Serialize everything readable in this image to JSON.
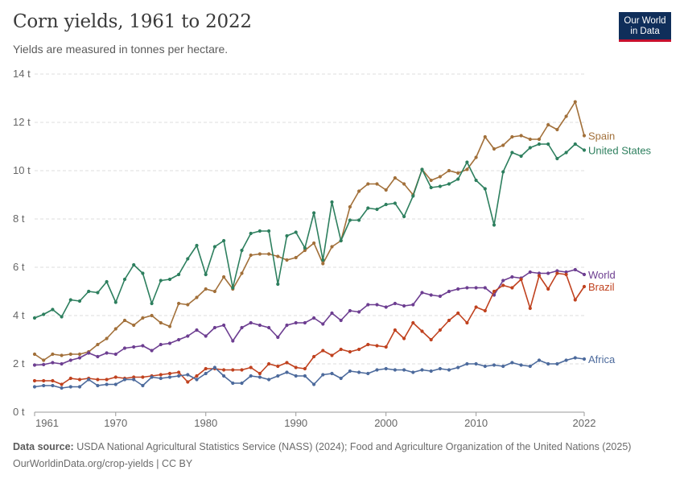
{
  "header": {
    "title": "Corn yields, 1961 to 2022",
    "subtitle": "Yields are measured in tonnes per hectare."
  },
  "logo": {
    "line1": "Our World",
    "line2": "in Data"
  },
  "footer": {
    "source_label": "Data source:",
    "source_text": "USDA National Agricultural Statistics Service (NASS) (2024); Food and Agriculture Organization of the United Nations (2025)",
    "url_license": "OurWorldinData.org/crop-yields | CC BY"
  },
  "chart_data": {
    "type": "line",
    "x_start": 1961,
    "x_end": 2022,
    "ylim": [
      0,
      14
    ],
    "y_ticks": [
      0,
      2,
      4,
      6,
      8,
      10,
      12,
      14
    ],
    "y_tick_labels": [
      "0 t",
      "2 t",
      "4 t",
      "6 t",
      "8 t",
      "10 t",
      "12 t",
      "14 t"
    ],
    "x_ticks": [
      1961,
      1970,
      1980,
      1990,
      2000,
      2010,
      2022
    ],
    "grid": "horizontal dashed",
    "series": [
      {
        "name": "Spain",
        "color": "#a2703a",
        "values": [
          2.4,
          2.15,
          2.4,
          2.35,
          2.4,
          2.4,
          2.5,
          2.8,
          3.05,
          3.45,
          3.8,
          3.6,
          3.9,
          4.0,
          3.7,
          3.55,
          4.5,
          4.45,
          4.75,
          5.1,
          5.0,
          5.6,
          5.1,
          5.75,
          6.5,
          6.55,
          6.55,
          6.45,
          6.3,
          6.4,
          6.7,
          7.0,
          6.15,
          6.85,
          7.1,
          8.5,
          9.15,
          9.45,
          9.45,
          9.2,
          9.7,
          9.45,
          9.0,
          10.05,
          9.6,
          9.75,
          10.0,
          9.9,
          10.05,
          10.55,
          11.4,
          10.9,
          11.05,
          11.4,
          11.45,
          11.3,
          11.3,
          11.9,
          11.7,
          12.25,
          12.85,
          11.45
        ]
      },
      {
        "name": "United States",
        "color": "#2d7f5e",
        "values": [
          3.9,
          4.05,
          4.25,
          3.95,
          4.65,
          4.6,
          5.0,
          4.95,
          5.4,
          4.55,
          5.5,
          6.1,
          5.75,
          4.5,
          5.45,
          5.5,
          5.7,
          6.35,
          6.9,
          5.7,
          6.85,
          7.1,
          5.15,
          6.7,
          7.4,
          7.5,
          7.5,
          5.3,
          7.3,
          7.45,
          6.8,
          8.25,
          6.3,
          8.7,
          7.1,
          7.95,
          7.95,
          8.45,
          8.4,
          8.6,
          8.65,
          8.1,
          8.95,
          10.05,
          9.3,
          9.35,
          9.45,
          9.65,
          10.35,
          9.6,
          9.25,
          7.75,
          9.95,
          10.75,
          10.6,
          10.95,
          11.1,
          11.1,
          10.5,
          10.75,
          11.1,
          10.85
        ]
      },
      {
        "name": "World",
        "color": "#6d3e91",
        "values": [
          1.95,
          1.97,
          2.05,
          2.0,
          2.15,
          2.25,
          2.45,
          2.3,
          2.45,
          2.4,
          2.65,
          2.7,
          2.75,
          2.55,
          2.8,
          2.85,
          3.0,
          3.15,
          3.4,
          3.15,
          3.5,
          3.6,
          2.95,
          3.5,
          3.7,
          3.6,
          3.5,
          3.1,
          3.6,
          3.7,
          3.7,
          3.9,
          3.65,
          4.1,
          3.8,
          4.2,
          4.15,
          4.45,
          4.45,
          4.35,
          4.5,
          4.4,
          4.45,
          4.95,
          4.85,
          4.8,
          5.0,
          5.1,
          5.15,
          5.15,
          5.15,
          4.85,
          5.45,
          5.6,
          5.55,
          5.8,
          5.75,
          5.75,
          5.85,
          5.8,
          5.9,
          5.7
        ]
      },
      {
        "name": "Brazil",
        "color": "#c0421f",
        "values": [
          1.3,
          1.3,
          1.3,
          1.15,
          1.4,
          1.35,
          1.4,
          1.35,
          1.35,
          1.45,
          1.4,
          1.45,
          1.45,
          1.5,
          1.55,
          1.6,
          1.65,
          1.25,
          1.5,
          1.8,
          1.8,
          1.75,
          1.75,
          1.75,
          1.85,
          1.6,
          2.0,
          1.9,
          2.05,
          1.85,
          1.8,
          2.3,
          2.55,
          2.35,
          2.6,
          2.5,
          2.6,
          2.8,
          2.75,
          2.7,
          3.4,
          3.05,
          3.7,
          3.35,
          3.0,
          3.4,
          3.8,
          4.1,
          3.7,
          4.35,
          4.2,
          5.0,
          5.25,
          5.15,
          5.5,
          4.3,
          5.65,
          5.1,
          5.75,
          5.7,
          4.65,
          5.2
        ]
      },
      {
        "name": "Africa",
        "color": "#4c6a9c",
        "values": [
          1.05,
          1.1,
          1.1,
          1.0,
          1.05,
          1.05,
          1.35,
          1.1,
          1.15,
          1.15,
          1.35,
          1.35,
          1.1,
          1.45,
          1.4,
          1.45,
          1.5,
          1.55,
          1.35,
          1.6,
          1.85,
          1.5,
          1.2,
          1.2,
          1.5,
          1.45,
          1.35,
          1.5,
          1.65,
          1.5,
          1.5,
          1.15,
          1.55,
          1.6,
          1.4,
          1.7,
          1.65,
          1.6,
          1.75,
          1.8,
          1.75,
          1.75,
          1.65,
          1.75,
          1.7,
          1.8,
          1.75,
          1.85,
          2.0,
          2.0,
          1.9,
          1.95,
          1.9,
          2.05,
          1.95,
          1.9,
          2.15,
          2.0,
          2.0,
          2.15,
          2.25,
          2.2
        ]
      }
    ]
  }
}
